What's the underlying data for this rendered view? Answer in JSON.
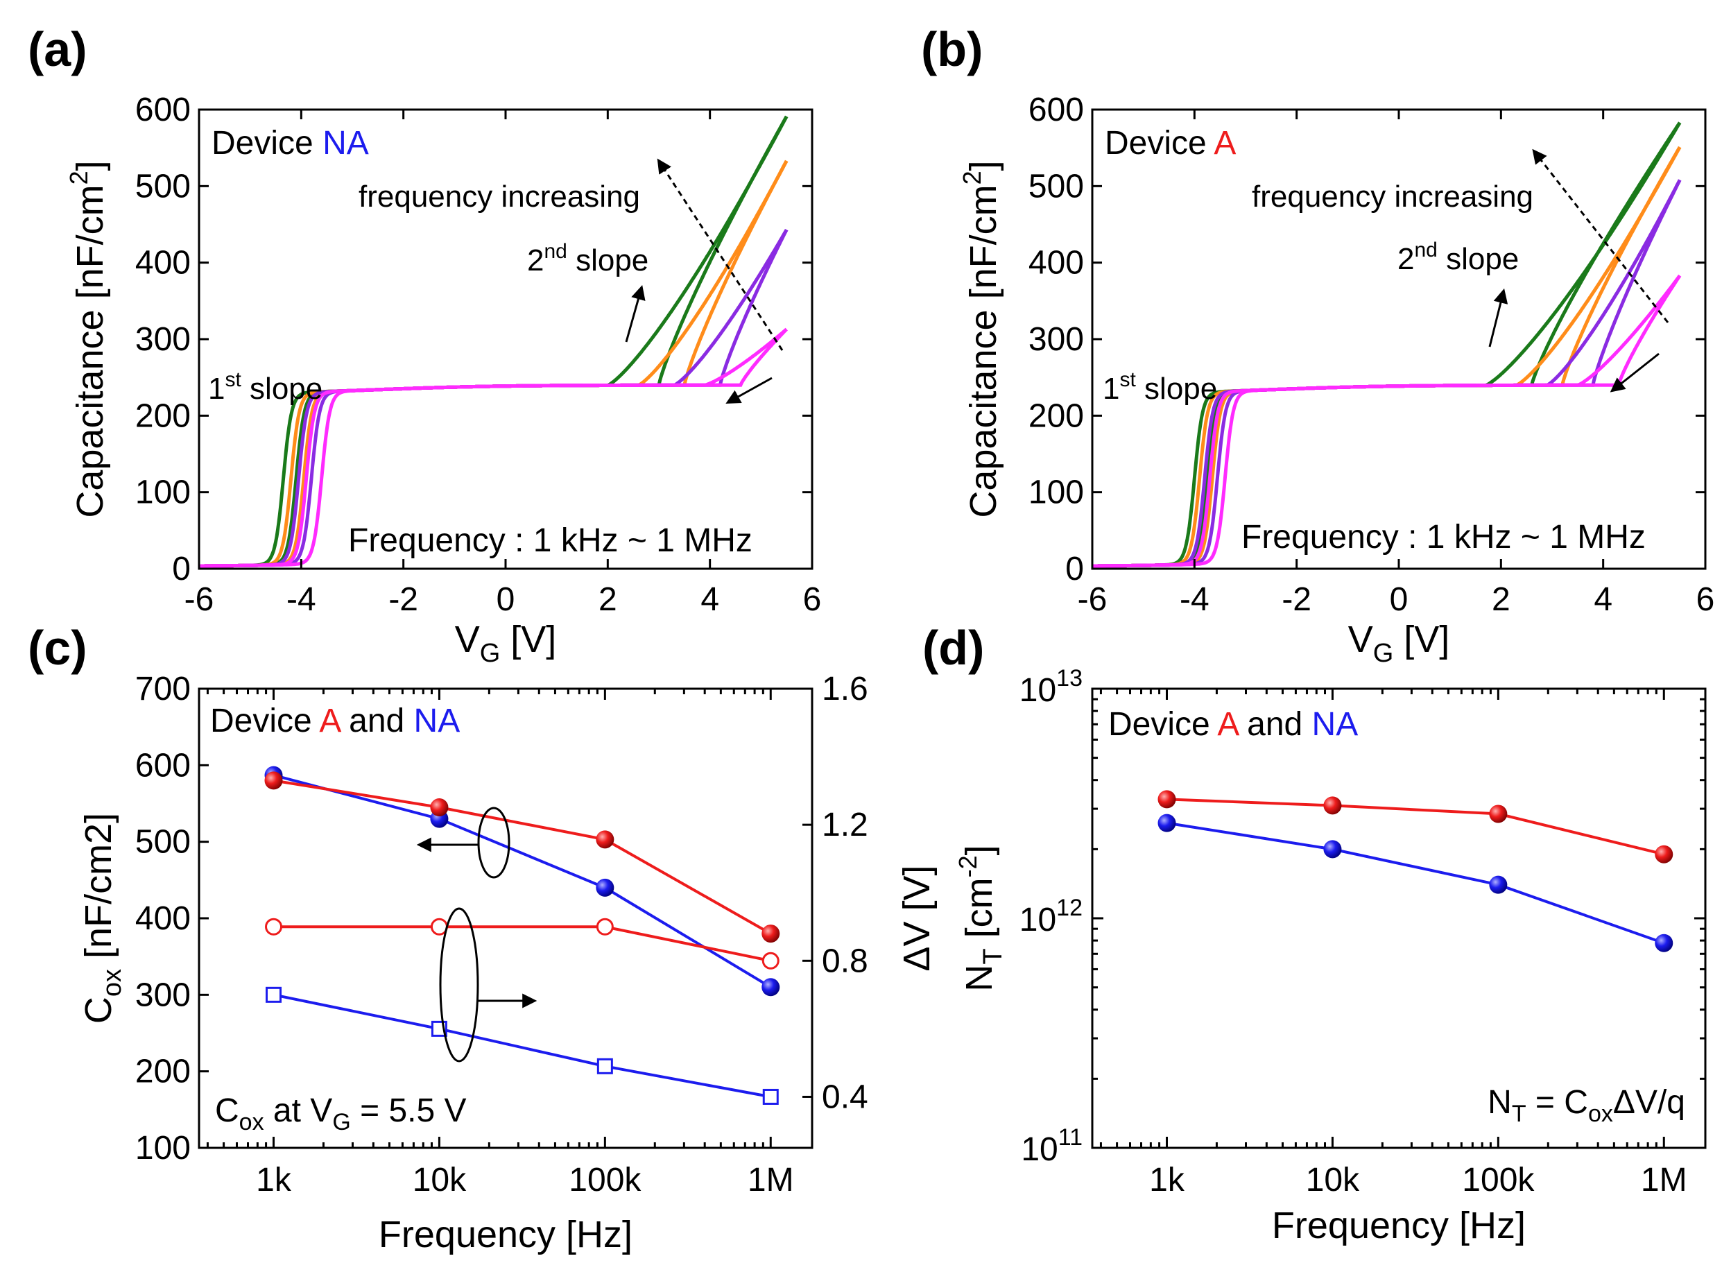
{
  "colors": {
    "green": "#1a7a1a",
    "orange": "#ff8c1a",
    "purple": "#8a2be2",
    "magenta": "#ff2bff",
    "device_A": "#ee1c1c",
    "device_NA": "#1c1cee"
  },
  "panels": {
    "a": {
      "label": "(a)",
      "device_prefix": "Device ",
      "device_name": "NA",
      "freq_annotation": "frequency increasing",
      "second_slope": {
        "sup": "nd",
        "num": "2",
        "text": " slope"
      },
      "first_slope": {
        "sup": "st",
        "num": "1",
        "text": " slope"
      },
      "range_text": "Frequency : 1 kHz ~ 1 MHz"
    },
    "b": {
      "label": "(b)",
      "device_prefix": "Device ",
      "device_name": "A",
      "freq_annotation": "frequency increasing",
      "second_slope": {
        "sup": "nd",
        "num": "2",
        "text": " slope"
      },
      "first_slope": {
        "sup": "st",
        "num": "1",
        "text": " slope"
      },
      "range_text": "Frequency : 1 kHz ~ 1 MHz"
    },
    "c": {
      "label": "(c)",
      "legend": {
        "prefix": "Device ",
        "a": "A",
        "mid": " and ",
        "na": "NA"
      },
      "note": {
        "c": "C",
        "sub": "ox",
        "rest": " at V",
        "sub2": "G",
        "tail": " = 5.5 V"
      }
    },
    "d": {
      "label": "(d)",
      "legend": {
        "prefix": "Device ",
        "a": "A",
        "mid": " and ",
        "na": "NA"
      },
      "formula": {
        "n": "N",
        "sub": "T",
        "eq": " = C",
        "sub2": "ox",
        "tail": "ΔV/q"
      }
    }
  },
  "chart_data": [
    {
      "id": "a",
      "type": "line",
      "xlabel": {
        "main": "V",
        "sub": "G",
        "tail": " [V]"
      },
      "ylabel": {
        "main": "Capacitance [nF/cm",
        "sup": "2",
        "tail": "]"
      },
      "xlim": [
        -6,
        6
      ],
      "ylim": [
        0,
        600
      ],
      "xticks": [
        "-6",
        "-4",
        "-2",
        "0",
        "2",
        "4",
        "6"
      ],
      "yticks": [
        "0",
        "100",
        "200",
        "300",
        "400",
        "500",
        "600"
      ],
      "series": [
        {
          "color": "green",
          "vmax": 5.5,
          "cmax": 588,
          "turn_up": 2.0,
          "turn_down": 3.0,
          "dep_up": -4.35,
          "dep_down": -4.1
        },
        {
          "color": "orange",
          "vmax": 5.5,
          "cmax": 530,
          "turn_up": 2.6,
          "turn_down": 3.5,
          "dep_up": -4.2,
          "dep_down": -3.95
        },
        {
          "color": "purple",
          "vmax": 5.5,
          "cmax": 440,
          "turn_up": 3.3,
          "turn_down": 4.2,
          "dep_up": -4.05,
          "dep_down": -3.8
        },
        {
          "color": "magenta",
          "vmax": 5.5,
          "cmax": 310,
          "turn_up": 3.9,
          "turn_down": 4.6,
          "dep_up": -3.9,
          "dep_down": -3.6
        }
      ]
    },
    {
      "id": "b",
      "type": "line",
      "xlabel": {
        "main": "V",
        "sub": "G",
        "tail": " [V]"
      },
      "ylabel": {
        "main": "Capacitance [nF/cm",
        "sup": "2",
        "tail": "]"
      },
      "xlim": [
        -6,
        6
      ],
      "ylim": [
        0,
        600
      ],
      "xticks": [
        "-6",
        "-4",
        "-2",
        "0",
        "2",
        "4",
        "6"
      ],
      "yticks": [
        "0",
        "100",
        "200",
        "300",
        "400",
        "500",
        "600"
      ],
      "series": [
        {
          "color": "green",
          "vmax": 5.5,
          "cmax": 580,
          "turn_up": 1.7,
          "turn_down": 2.6,
          "dep_up": -4.0,
          "dep_down": -3.75
        },
        {
          "color": "orange",
          "vmax": 5.5,
          "cmax": 548,
          "turn_up": 2.3,
          "turn_down": 3.2,
          "dep_up": -3.9,
          "dep_down": -3.65
        },
        {
          "color": "purple",
          "vmax": 5.5,
          "cmax": 505,
          "turn_up": 2.9,
          "turn_down": 3.8,
          "dep_up": -3.8,
          "dep_down": -3.55
        },
        {
          "color": "magenta",
          "vmax": 5.5,
          "cmax": 380,
          "turn_up": 3.5,
          "turn_down": 4.3,
          "dep_up": -3.7,
          "dep_down": -3.4
        }
      ]
    },
    {
      "id": "c",
      "type": "line",
      "xlabel": {
        "main": "Frequency [Hz]"
      },
      "ylabel": {
        "main": "C",
        "sub": "ox",
        "tail": " [nF/cm2]"
      },
      "y2label": {
        "main": "ΔV [V]"
      },
      "categories": [
        "1k",
        "10k",
        "100k",
        "1M"
      ],
      "x": [
        1000,
        10000,
        100000,
        1000000
      ],
      "ylim": [
        100,
        700
      ],
      "y2lim": [
        0.25,
        1.6
      ],
      "yticks": [
        "100",
        "200",
        "300",
        "400",
        "500",
        "600",
        "700"
      ],
      "y2ticks": [
        "0.4",
        "0.8",
        "1.2",
        "1.6"
      ],
      "series": [
        {
          "device": "NA",
          "quantity": "Cox",
          "axis": "left",
          "marker": "filled-circle",
          "values": [
            587,
            530,
            440,
            310
          ]
        },
        {
          "device": "A",
          "quantity": "Cox",
          "axis": "left",
          "marker": "filled-circle",
          "values": [
            580,
            545,
            503,
            380
          ]
        },
        {
          "device": "A",
          "quantity": "ΔV",
          "axis": "right",
          "marker": "open-circle",
          "values": [
            0.9,
            0.9,
            0.9,
            0.8
          ]
        },
        {
          "device": "NA",
          "quantity": "ΔV",
          "axis": "right",
          "marker": "open-square",
          "values": [
            0.7,
            0.6,
            0.49,
            0.4
          ]
        }
      ]
    },
    {
      "id": "d",
      "type": "line",
      "xlabel": {
        "main": "Frequency [Hz]"
      },
      "ylabel": {
        "main": "N",
        "sub": "T",
        "tail": " [cm",
        "sup": "-2",
        "end": "]"
      },
      "categories": [
        "1k",
        "10k",
        "100k",
        "1M"
      ],
      "x": [
        1000,
        10000,
        100000,
        1000000
      ],
      "yscale": "log",
      "ylim": [
        100000000000.0,
        10000000000000.0
      ],
      "yticks": [
        {
          "base": "10",
          "exp": "11"
        },
        {
          "base": "10",
          "exp": "12"
        },
        {
          "base": "10",
          "exp": "13"
        }
      ],
      "series": [
        {
          "device": "A",
          "marker": "filled-circle",
          "values": [
            3300000000000.0,
            3100000000000.0,
            2850000000000.0,
            1900000000000.0
          ]
        },
        {
          "device": "NA",
          "marker": "filled-circle",
          "values": [
            2600000000000.0,
            2000000000000.0,
            1400000000000.0,
            780000000000.0
          ]
        }
      ]
    }
  ]
}
